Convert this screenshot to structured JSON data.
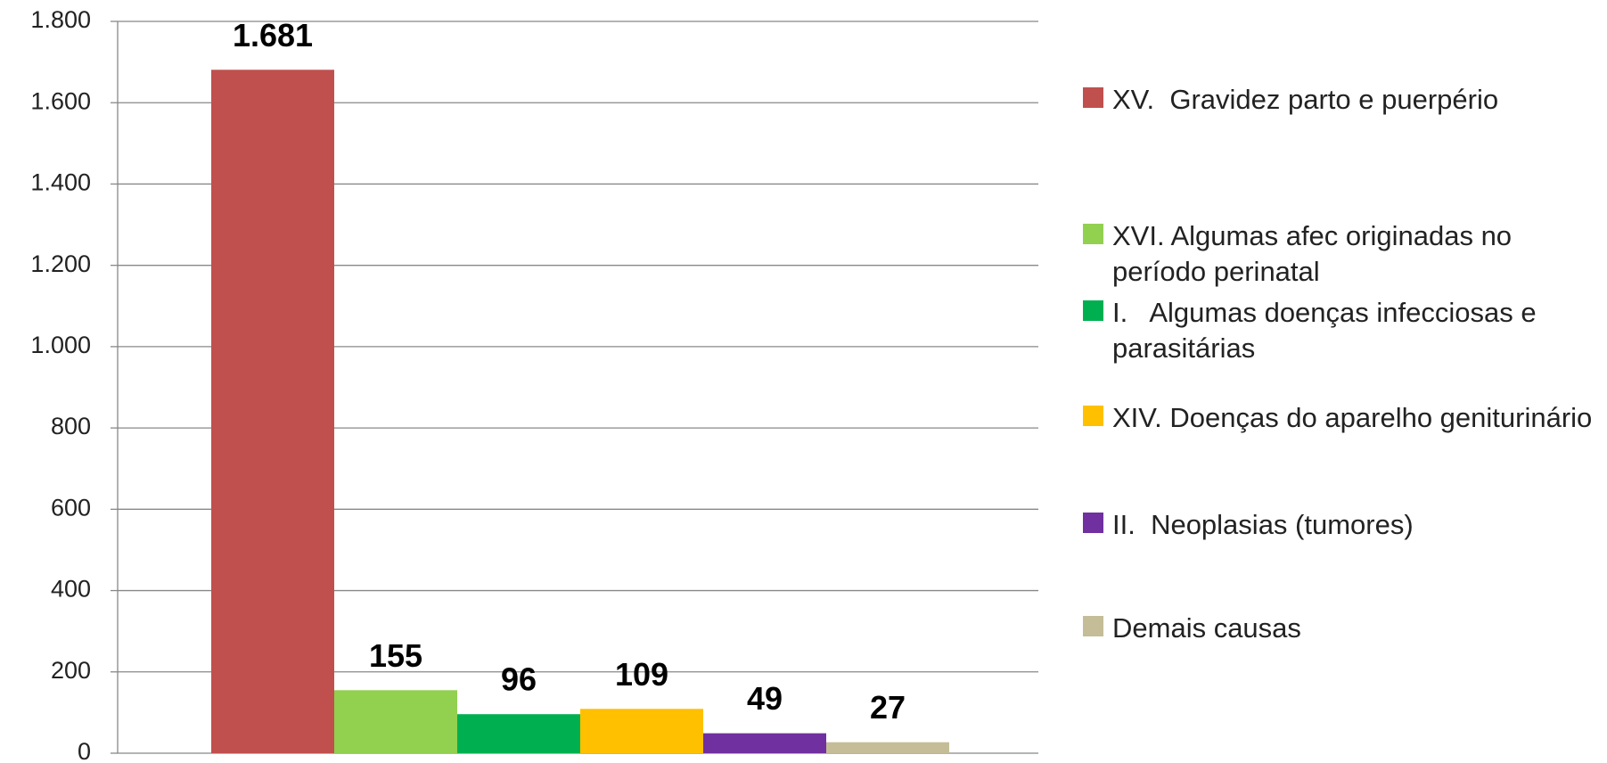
{
  "chart_data": {
    "type": "bar",
    "categories": [
      null
    ],
    "series": [
      {
        "name": "XV.  Gravidez parto e puerpério",
        "color": "#c0504d",
        "values": [
          1681
        ],
        "value_labels": [
          "1.681"
        ]
      },
      {
        "name": "XVI. Algumas afec originadas no período perinatal",
        "color": "#92d050",
        "values": [
          155
        ],
        "value_labels": [
          "155"
        ]
      },
      {
        "name": "I.   Algumas doenças infecciosas e parasitárias",
        "color": "#00b050",
        "values": [
          96
        ],
        "value_labels": [
          "96"
        ]
      },
      {
        "name": "XIV. Doenças do aparelho geniturinário",
        "color": "#ffc000",
        "values": [
          109
        ],
        "value_labels": [
          "109"
        ]
      },
      {
        "name": "II.  Neoplasias (tumores)",
        "color": "#7030a0",
        "values": [
          49
        ],
        "value_labels": [
          "49"
        ]
      },
      {
        "name": "Demais causas",
        "color": "#c4bd97",
        "values": [
          27
        ],
        "value_labels": [
          "27"
        ]
      }
    ],
    "ylim": [
      0,
      1800
    ],
    "yticks": [
      0,
      200,
      400,
      600,
      800,
      {
        "value": 1000,
        "label": "1.000"
      },
      {
        "value": 1200,
        "label": "1.200"
      },
      {
        "value": 1400,
        "label": "1.400"
      },
      {
        "value": 1600,
        "label": "1.600"
      },
      {
        "value": 1800,
        "label": "1.800"
      }
    ],
    "grid": true,
    "legend": "right"
  }
}
